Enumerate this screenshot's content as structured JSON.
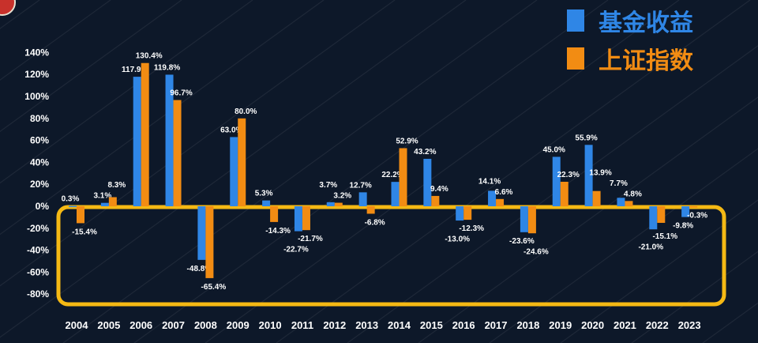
{
  "chart_data": {
    "type": "bar",
    "title": "",
    "xlabel": "",
    "ylabel": "",
    "ylim": [
      -80,
      140
    ],
    "yticks": [
      "140%",
      "120%",
      "100%",
      "80%",
      "60%",
      "40%",
      "20%",
      "0%",
      "-20%",
      "-40%",
      "-60%",
      "-80%"
    ],
    "ytick_values": [
      140,
      120,
      100,
      80,
      60,
      40,
      20,
      0,
      -20,
      -40,
      -60,
      -80
    ],
    "categories": [
      "2004",
      "2005",
      "2006",
      "2007",
      "2008",
      "2009",
      "2010",
      "2011",
      "2012",
      "2013",
      "2014",
      "2015",
      "2016",
      "2017",
      "2018",
      "2019",
      "2020",
      "2021",
      "2022",
      "2023"
    ],
    "series": [
      {
        "name": "基金收益",
        "color": "#2f86e6",
        "values": [
          0.3,
          3.1,
          117.9,
          119.8,
          -48.8,
          63.0,
          5.3,
          -22.7,
          3.7,
          12.7,
          22.2,
          43.2,
          -13.0,
          14.1,
          -23.6,
          45.0,
          55.9,
          7.7,
          -21.0,
          -9.8
        ],
        "labels": [
          "0.3%",
          "3.1%",
          "117.9%",
          "119.8%",
          "-48.8%",
          "63.0%",
          "5.3%",
          "-22.7%",
          "3.7%",
          "12.7%",
          "22.2%",
          "43.2%",
          "-13.0%",
          "14.1%",
          "-23.6%",
          "45.0%",
          "55.9%",
          "7.7%",
          "-21.0%",
          "-9.8%"
        ]
      },
      {
        "name": "上证指数",
        "color": "#f28c13",
        "values": [
          -15.4,
          8.3,
          130.4,
          96.7,
          -65.4,
          80.0,
          -14.3,
          -21.7,
          3.2,
          -6.8,
          52.9,
          9.4,
          -12.3,
          6.6,
          -24.6,
          22.3,
          13.9,
          4.8,
          -15.1,
          -0.3
        ],
        "labels": [
          "-15.4%",
          "8.3%",
          "130.4%",
          "96.7%",
          "-65.4%",
          "80.0%",
          "-14.3%",
          "-21.7%",
          "3.2%",
          "-6.8%",
          "52.9%",
          "9.4%",
          "-12.3%",
          "6.6%",
          "-24.6%",
          "22.3%",
          "13.9%",
          "4.8%",
          "-15.1%",
          "-0.3%"
        ]
      }
    ],
    "legend_position": "top-right",
    "highlight_color": "#f5b914",
    "grid": false
  }
}
